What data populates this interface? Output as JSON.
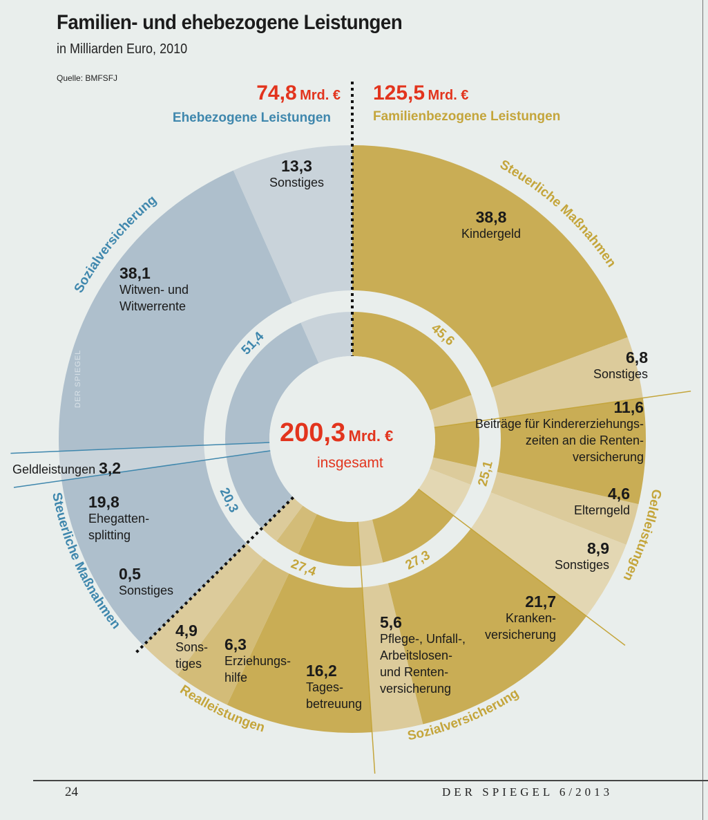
{
  "header": {
    "title": "Familien- und ehebezogene Leistungen",
    "subtitle": "in Milliarden Euro, 2010",
    "source": "Quelle: BMFSFJ"
  },
  "footer": {
    "page_number": "24",
    "magazine": "DER SPIEGEL 6/2013"
  },
  "watermark": "DER SPIEGEL",
  "colors": {
    "total_red": "#e2341d",
    "ehe_blue_text": "#3f87ad",
    "familie_gold_text": "#c4a53b",
    "blue_dark": "#aebfcc",
    "blue_light": "#c9d3da",
    "gold_dark": "#c9ad55",
    "gold_light": "#dccb9b",
    "background": "#e9eeec"
  },
  "chart_data": {
    "type": "pie",
    "subtype": "nested-donut",
    "title": "Familien- und ehebezogene Leistungen",
    "subtitle": "in Milliarden Euro, 2010",
    "unit": "Mrd. €",
    "total": {
      "value": "200,3",
      "unit": "Mrd. €",
      "label": "insgesamt"
    },
    "halves": [
      {
        "name": "Familienbezogene Leistungen",
        "value": "125,5",
        "unit": "Mrd. €",
        "side": "right"
      },
      {
        "name": "Ehebezogene Leistungen",
        "value": "74,8",
        "unit": "Mrd. €",
        "side": "left"
      }
    ],
    "groups": [
      {
        "half": "Familienbezogene Leistungen",
        "name": "Steuerliche Maßnahmen",
        "value": 45.6,
        "label": "45,6",
        "tone": "gold",
        "items": [
          {
            "name": "Kindergeld",
            "value": 38.8,
            "label": "38,8",
            "shade": "dark"
          },
          {
            "name": "Sonstiges",
            "value": 6.8,
            "label": "6,8",
            "shade": "light"
          }
        ]
      },
      {
        "half": "Familienbezogene Leistungen",
        "name": "Geldleistungen",
        "value": 25.1,
        "label": "25,1",
        "tone": "gold",
        "items": [
          {
            "name": "Beiträge für Kindererziehungszeiten an die Rentenversicherung",
            "value": 11.6,
            "label": "11,6",
            "shade": "dark"
          },
          {
            "name": "Elterngeld",
            "value": 4.6,
            "label": "4,6",
            "shade": "light"
          },
          {
            "name": "Sonstiges",
            "value": 8.9,
            "label": "8,9",
            "shade": "lighter"
          }
        ]
      },
      {
        "half": "Familienbezogene Leistungen",
        "name": "Sozialversicherung",
        "value": 27.3,
        "label": "27,3",
        "tone": "gold",
        "items": [
          {
            "name": "Krankenversicherung",
            "value": 21.7,
            "label": "21,7",
            "shade": "dark"
          },
          {
            "name": "Pflege-, Unfall-, Arbeitslosen- und Rentenversicherung",
            "value": 5.6,
            "label": "5,6",
            "shade": "light"
          }
        ]
      },
      {
        "half": "Familienbezogene Leistungen",
        "name": "Realleistungen",
        "value": 27.4,
        "label": "27,4",
        "tone": "gold",
        "items": [
          {
            "name": "Tagesbetreuung",
            "value": 16.2,
            "label": "16,2",
            "shade": "dark"
          },
          {
            "name": "Erziehungshilfe",
            "value": 6.3,
            "label": "6,3",
            "shade": "mid"
          },
          {
            "name": "Sonstiges",
            "value": 4.9,
            "label": "4,9",
            "shade": "light"
          }
        ]
      },
      {
        "half": "Ehebezogene Leistungen",
        "name": "Steuerliche Maßnahmen",
        "value": 20.3,
        "label": "20,3",
        "tone": "blue",
        "items": [
          {
            "name": "Sonstiges",
            "value": 0.5,
            "label": "0,5",
            "shade": "dark"
          },
          {
            "name": "Ehegattensplitting",
            "value": 19.8,
            "label": "19,8",
            "shade": "dark"
          }
        ]
      },
      {
        "half": "Ehebezogene Leistungen",
        "name": "Geldleistungen",
        "value": 3.2,
        "label": "3,2",
        "tone": "blue",
        "items": [
          {
            "name": "Geldleistungen",
            "value": 3.2,
            "label": "3,2",
            "shade": "light"
          }
        ]
      },
      {
        "half": "Ehebezogene Leistungen",
        "name": "Sozialversicherung",
        "value": 51.4,
        "label": "51,4",
        "tone": "blue",
        "items": [
          {
            "name": "Witwen- und Witwerrente",
            "value": 38.1,
            "label": "38,1",
            "shade": "dark"
          },
          {
            "name": "Sonstiges",
            "value": 13.3,
            "label": "13,3",
            "shade": "light"
          }
        ]
      }
    ],
    "item_text": {
      "kindergeld": [
        "38,8",
        "Kindergeld"
      ],
      "fam_sonst_steuer": [
        "6,8",
        "Sonstiges"
      ],
      "beitraege": [
        "11,6",
        "Beiträge für Kindererziehungs-",
        "zeiten an die Renten-",
        "versicherung"
      ],
      "elterngeld": [
        "4,6",
        "Elterngeld"
      ],
      "fam_sonst_geld": [
        "8,9",
        "Sonstiges"
      ],
      "kranken": [
        "21,7",
        "Kranken-",
        "versicherung"
      ],
      "pflege": [
        "5,6",
        "Pflege-, Unfall-,",
        "Arbeitslosen-",
        "und Renten-",
        "versicherung"
      ],
      "tages": [
        "16,2",
        "Tages-",
        "betreuung"
      ],
      "erziehung": [
        "6,3",
        "Erziehungs-",
        "hilfe"
      ],
      "real_sonst": [
        "4,9",
        "Sons-",
        "tiges"
      ],
      "ehe_sonst_steuer": [
        "0,5",
        "Sonstiges"
      ],
      "splitting": [
        "19,8",
        "Ehegatten-",
        "splitting"
      ],
      "ehe_geld": [
        "Geldleistungen",
        "3,2"
      ],
      "witwen": [
        "38,1",
        "Witwen- und",
        "Witwerrente"
      ],
      "ehe_sonst_sozial": [
        "13,3",
        "Sonstiges"
      ]
    }
  }
}
